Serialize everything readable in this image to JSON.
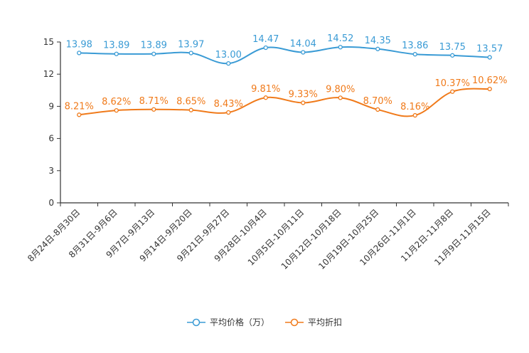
{
  "chart_data": {
    "type": "line",
    "categories": [
      "8月24日-8月30日",
      "8月31日-9月6日",
      "9月7日-9月13日",
      "9月14日-9月20日",
      "9月21日-9月27日",
      "9月28日-10月4日",
      "10月5日-10月11日",
      "10月12日-10月18日",
      "10月19日-10月25日",
      "10月26日-11月1日",
      "11月2日-11月8日",
      "11月9日-11月15日"
    ],
    "series": [
      {
        "name": "平均价格（万）",
        "color": "#3a9bd5",
        "values": [
          13.98,
          13.89,
          13.89,
          13.97,
          13.0,
          14.47,
          14.04,
          14.52,
          14.35,
          13.86,
          13.75,
          13.57
        ],
        "labels": [
          "13.98",
          "13.89",
          "13.89",
          "13.97",
          "13.00",
          "14.47",
          "14.04",
          "14.52",
          "14.35",
          "13.86",
          "13.75",
          "13.57"
        ]
      },
      {
        "name": "平均折扣",
        "color": "#f07a1a",
        "values": [
          8.21,
          8.62,
          8.71,
          8.65,
          8.43,
          9.81,
          9.33,
          9.8,
          8.7,
          8.16,
          10.37,
          10.62
        ],
        "labels": [
          "8.21%",
          "8.62%",
          "8.71%",
          "8.65%",
          "8.43%",
          "9.81%",
          "9.33%",
          "9.80%",
          "8.70%",
          "8.16%",
          "10.37%",
          "10.62%"
        ]
      }
    ],
    "y_ticks": [
      "0",
      "3",
      "6",
      "9",
      "12",
      "15"
    ],
    "ylim": [
      0,
      15
    ],
    "xlabel": "",
    "ylabel": "",
    "legend_position": "bottom"
  }
}
